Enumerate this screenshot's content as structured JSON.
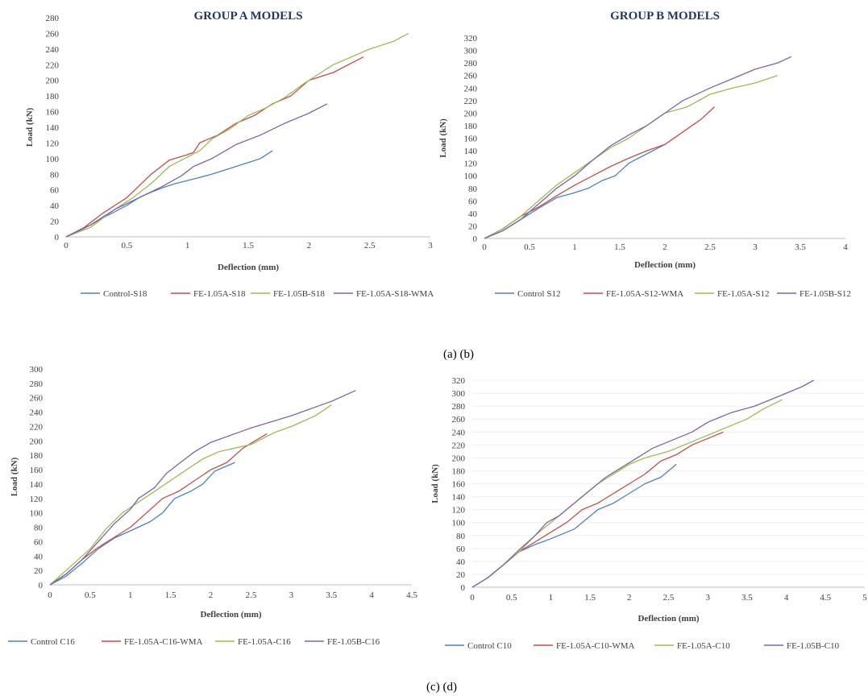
{
  "captions": {
    "ab": "(a)     (b)",
    "cd": "(c)                   (d)"
  },
  "colors": {
    "control": "#4f81bd",
    "wma": "#c0504d",
    "a": "#9bbb59",
    "b": "#8064a2"
  },
  "chart_data": [
    {
      "id": "a",
      "type": "line",
      "title": "GROUP A MODELS",
      "xlabel": "Deflection (mm)",
      "ylabel": "Load (kN)",
      "xlim": [
        0,
        3
      ],
      "ylim": [
        0,
        280
      ],
      "xticks": [
        0,
        0.5,
        1,
        1.5,
        2,
        2.5,
        3
      ],
      "xtick_labels": [
        "0",
        "0.5",
        "1",
        "1.5",
        "2",
        "2.5",
        "3"
      ],
      "yticks": [
        0,
        20,
        40,
        60,
        80,
        100,
        120,
        140,
        160,
        180,
        200,
        220,
        240,
        260,
        280
      ],
      "ytick_labels": [
        "0",
        "20",
        "40",
        "60",
        "80",
        "100",
        "120",
        "140",
        "160",
        "180",
        "200",
        "220",
        "240",
        "260",
        "280"
      ],
      "grid": false,
      "legend": "bottom",
      "series": [
        {
          "name": "Control-S18",
          "color": "#4f81bd",
          "x": [
            0,
            0.1,
            0.2,
            0.3,
            0.4,
            0.5,
            0.6,
            0.7,
            0.8,
            0.9,
            1.0,
            1.2,
            1.4,
            1.6,
            1.7
          ],
          "y": [
            0,
            7,
            15,
            24,
            32,
            40,
            50,
            57,
            63,
            68,
            72,
            80,
            90,
            100,
            110
          ]
        },
        {
          "name": "FE-1.05A-S18",
          "color": "#c0504d",
          "x": [
            0,
            0.15,
            0.3,
            0.5,
            0.7,
            0.85,
            1.0,
            1.05,
            1.1,
            1.25,
            1.4,
            1.55,
            1.7,
            1.85,
            2.0,
            2.2,
            2.45
          ],
          "y": [
            0,
            12,
            30,
            50,
            80,
            98,
            105,
            108,
            120,
            130,
            145,
            155,
            170,
            180,
            200,
            210,
            230
          ]
        },
        {
          "name": "FE-1.05B-S18",
          "color": "#9bbb59",
          "x": [
            0,
            0.2,
            0.4,
            0.55,
            0.7,
            0.85,
            1.0,
            1.1,
            1.2,
            1.35,
            1.5,
            1.65,
            1.8,
            1.95,
            2.1,
            2.2,
            2.35,
            2.5,
            2.7,
            2.82
          ],
          "y": [
            0,
            12,
            35,
            50,
            68,
            90,
            102,
            110,
            125,
            138,
            155,
            165,
            178,
            195,
            210,
            220,
            230,
            240,
            250,
            260
          ]
        },
        {
          "name": "FE-1.05A-S18-WMA",
          "color": "#8064a2",
          "x": [
            0,
            0.2,
            0.4,
            0.6,
            0.8,
            0.95,
            1.05,
            1.2,
            1.4,
            1.6,
            1.8,
            2.0,
            2.15
          ],
          "y": [
            0,
            15,
            35,
            50,
            65,
            78,
            90,
            100,
            118,
            130,
            145,
            158,
            170
          ]
        }
      ]
    },
    {
      "id": "b",
      "type": "line",
      "title": "GROUP B MODELS",
      "xlabel": "Deflection (mm)",
      "ylabel": "Load (kN)",
      "xlim": [
        0,
        4
      ],
      "ylim": [
        0,
        320
      ],
      "xticks": [
        0,
        0.5,
        1,
        1.5,
        2,
        2.5,
        3,
        3.5,
        4
      ],
      "xtick_labels": [
        "0",
        "0.5",
        "1",
        "1.5",
        "2",
        "2.5",
        "3",
        "3.5",
        "4"
      ],
      "yticks": [
        0,
        20,
        40,
        60,
        80,
        100,
        120,
        140,
        160,
        180,
        200,
        220,
        240,
        260,
        280,
        300,
        320
      ],
      "ytick_labels": [
        "0",
        "20",
        "40",
        "60",
        "80",
        "100",
        "120",
        "140",
        "160",
        "180",
        "200",
        "220",
        "240",
        "260",
        "280",
        "300",
        "320"
      ],
      "grid": false,
      "legend": "bottom",
      "series": [
        {
          "name": "Control S12",
          "color": "#4f81bd",
          "x": [
            0,
            0.2,
            0.4,
            0.6,
            0.8,
            1.0,
            1.15,
            1.3,
            1.45,
            1.6,
            1.8,
            2.0
          ],
          "y": [
            0,
            12,
            30,
            48,
            65,
            73,
            80,
            92,
            100,
            120,
            135,
            150
          ]
        },
        {
          "name": "FE-1.05A-S12-WMA",
          "color": "#c0504d",
          "x": [
            0,
            0.2,
            0.4,
            0.6,
            0.8,
            1.0,
            1.2,
            1.4,
            1.6,
            1.8,
            2.0,
            2.2,
            2.4,
            2.55
          ],
          "y": [
            0,
            15,
            35,
            50,
            68,
            85,
            100,
            115,
            128,
            140,
            150,
            170,
            190,
            210
          ]
        },
        {
          "name": "FE-1.05A-S12",
          "color": "#9bbb59",
          "x": [
            0,
            0.2,
            0.4,
            0.6,
            0.8,
            1.0,
            1.2,
            1.4,
            1.6,
            1.8,
            2.0,
            2.25,
            2.5,
            2.75,
            3.0,
            3.25
          ],
          "y": [
            0,
            15,
            35,
            60,
            85,
            105,
            125,
            145,
            160,
            180,
            200,
            210,
            230,
            240,
            248,
            260
          ]
        },
        {
          "name": "FE-1.05B-S12",
          "color": "#8064a2",
          "x": [
            0,
            0.2,
            0.4,
            0.6,
            0.8,
            1.0,
            1.2,
            1.4,
            1.6,
            1.8,
            2.0,
            2.2,
            2.5,
            2.75,
            3.0,
            3.25,
            3.4
          ],
          "y": [
            0,
            12,
            30,
            55,
            80,
            100,
            125,
            148,
            165,
            180,
            200,
            220,
            240,
            255,
            270,
            280,
            290
          ]
        }
      ]
    },
    {
      "id": "c",
      "type": "line",
      "title": "",
      "xlabel": "Deflection (mm)",
      "ylabel": "Load (kN)",
      "xlim": [
        0,
        4.5
      ],
      "ylim": [
        0,
        300
      ],
      "xticks": [
        0,
        0.5,
        1,
        1.5,
        2,
        2.5,
        3,
        3.5,
        4,
        4.5
      ],
      "xtick_labels": [
        "0",
        "0.5",
        "1",
        "1.5",
        "2",
        "2.5",
        "3",
        "3.5",
        "4",
        "4.5"
      ],
      "yticks": [
        0,
        20,
        40,
        60,
        80,
        100,
        120,
        140,
        160,
        180,
        200,
        220,
        240,
        260,
        280,
        300
      ],
      "ytick_labels": [
        "0",
        "20",
        "40",
        "60",
        "80",
        "100",
        "120",
        "140",
        "160",
        "180",
        "200",
        "220",
        "240",
        "260",
        "280",
        "300"
      ],
      "grid": false,
      "legend": "bottom",
      "series": [
        {
          "name": "Control C16",
          "color": "#4f81bd",
          "x": [
            0,
            0.2,
            0.4,
            0.6,
            0.8,
            1.0,
            1.25,
            1.4,
            1.55,
            1.75,
            1.9,
            2.05,
            2.3
          ],
          "y": [
            0,
            12,
            30,
            50,
            65,
            75,
            88,
            100,
            120,
            130,
            140,
            158,
            170
          ]
        },
        {
          "name": "FE-1.05A-C16-WMA",
          "color": "#c0504d",
          "x": [
            0,
            0.2,
            0.4,
            0.6,
            0.8,
            1.0,
            1.2,
            1.4,
            1.6,
            1.8,
            2.0,
            2.2,
            2.4,
            2.55,
            2.7
          ],
          "y": [
            0,
            15,
            35,
            52,
            66,
            80,
            100,
            120,
            130,
            145,
            160,
            170,
            190,
            200,
            210
          ]
        },
        {
          "name": "FE-1.05A-C16",
          "color": "#9bbb59",
          "x": [
            0,
            0.3,
            0.5,
            0.7,
            0.9,
            1.1,
            1.3,
            1.5,
            1.7,
            1.9,
            2.1,
            2.5,
            2.8,
            3.0,
            3.3,
            3.5
          ],
          "y": [
            0,
            30,
            50,
            78,
            100,
            115,
            130,
            145,
            160,
            175,
            185,
            195,
            212,
            220,
            235,
            250
          ]
        },
        {
          "name": "FE-1.05B-C16",
          "color": "#8064a2",
          "x": [
            0,
            0.2,
            0.4,
            0.6,
            0.8,
            1.0,
            1.1,
            1.3,
            1.45,
            1.6,
            1.8,
            2.0,
            2.5,
            3.0,
            3.5,
            3.8
          ],
          "y": [
            0,
            15,
            35,
            60,
            85,
            105,
            120,
            135,
            155,
            168,
            185,
            198,
            218,
            235,
            255,
            270
          ]
        }
      ]
    },
    {
      "id": "d",
      "type": "line",
      "title": "",
      "xlabel": "Deflection (mm)",
      "ylabel": "Load (kN)",
      "xlim": [
        0,
        5
      ],
      "ylim": [
        0,
        320
      ],
      "xticks": [
        0,
        0.5,
        1,
        1.5,
        2,
        2.5,
        3,
        3.5,
        4,
        4.5,
        5
      ],
      "xtick_labels": [
        "0",
        "0.5",
        "1",
        "1.5",
        "2",
        "2.5",
        "3",
        "3.5",
        "4",
        "4.5",
        "5"
      ],
      "yticks": [
        0,
        20,
        40,
        60,
        80,
        100,
        120,
        140,
        160,
        180,
        200,
        220,
        240,
        260,
        280,
        300,
        320
      ],
      "ytick_labels": [
        "0",
        "20",
        "40",
        "60",
        "80",
        "100",
        "120",
        "140",
        "160",
        "180",
        "200",
        "220",
        "240",
        "260",
        "280",
        "300",
        "320"
      ],
      "grid": true,
      "legend": "bottom",
      "series": [
        {
          "name": "Control C10",
          "color": "#4f81bd",
          "x": [
            0,
            0.2,
            0.4,
            0.6,
            0.8,
            1.0,
            1.3,
            1.5,
            1.6,
            1.8,
            2.0,
            2.2,
            2.4,
            2.6
          ],
          "y": [
            0,
            15,
            35,
            55,
            66,
            75,
            90,
            110,
            120,
            130,
            145,
            160,
            170,
            190
          ]
        },
        {
          "name": "FE-1.05A-C10-WMA",
          "color": "#c0504d",
          "x": [
            0,
            0.2,
            0.4,
            0.6,
            0.8,
            1.0,
            1.2,
            1.4,
            1.6,
            1.8,
            2.0,
            2.2,
            2.4,
            2.6,
            2.8,
            3.0,
            3.2
          ],
          "y": [
            0,
            15,
            35,
            55,
            70,
            85,
            100,
            120,
            130,
            145,
            160,
            175,
            195,
            205,
            220,
            230,
            240
          ]
        },
        {
          "name": "FE-1.05A-C10",
          "color": "#9bbb59",
          "x": [
            0,
            0.2,
            0.4,
            0.6,
            0.8,
            1.0,
            1.2,
            1.4,
            1.6,
            1.8,
            2.0,
            2.2,
            2.5,
            2.8,
            3.0,
            3.2,
            3.5,
            3.7,
            3.95
          ],
          "y": [
            0,
            15,
            35,
            55,
            80,
            100,
            120,
            140,
            160,
            175,
            190,
            200,
            210,
            225,
            235,
            245,
            260,
            275,
            290
          ]
        },
        {
          "name": "FE-1.05B-C10",
          "color": "#8064a2",
          "x": [
            0,
            0.2,
            0.4,
            0.6,
            0.8,
            0.95,
            1.1,
            1.3,
            1.5,
            1.7,
            1.9,
            2.1,
            2.3,
            2.6,
            2.8,
            3.0,
            3.3,
            3.6,
            3.8,
            4.0,
            4.2,
            4.35
          ],
          "y": [
            0,
            15,
            35,
            58,
            80,
            100,
            110,
            130,
            150,
            170,
            185,
            200,
            215,
            230,
            240,
            255,
            270,
            280,
            290,
            300,
            310,
            320
          ]
        }
      ]
    }
  ]
}
